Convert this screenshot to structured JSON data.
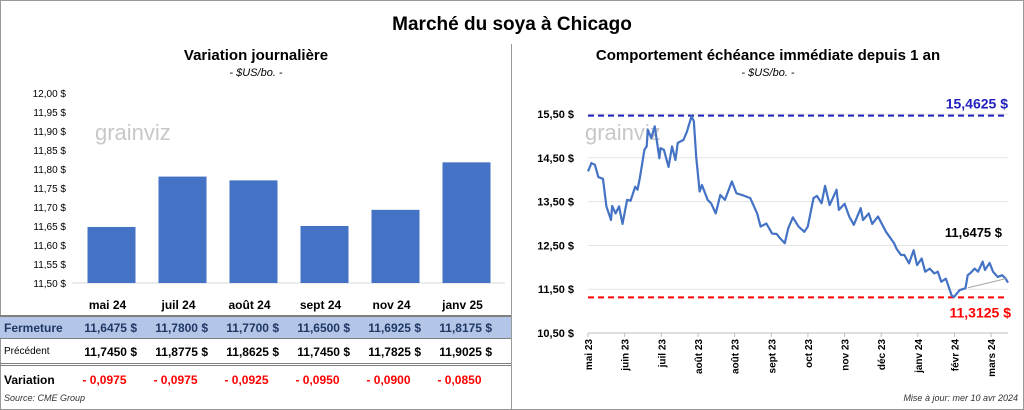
{
  "title": "Marché du soya à Chicago",
  "left": {
    "title": "Variation journalière",
    "subtitle": "- $US/bo. -",
    "watermark": "grainviz",
    "table": {
      "months": [
        "mai 24",
        "juil 24",
        "août 24",
        "sept 24",
        "nov 24",
        "janv 25"
      ],
      "rows": [
        {
          "label": "Fermeture",
          "values": [
            "11,6475  $",
            "11,7800  $",
            "11,7700  $",
            "11,6500  $",
            "11,6925  $",
            "11,8175  $"
          ]
        },
        {
          "label": "Précédent",
          "values": [
            "11,7450  $",
            "11,8775  $",
            "11,8625  $",
            "11,7450  $",
            "11,7825  $",
            "11,9025  $"
          ]
        },
        {
          "label": "Variation",
          "values": [
            "- 0,0975",
            "- 0,0975",
            "- 0,0925",
            "- 0,0950",
            "- 0,0900",
            "- 0,0850"
          ]
        }
      ]
    },
    "source": "Source: CME Group"
  },
  "right": {
    "title": "Comportement  échéance immédiate depuis 1 an",
    "subtitle": "- $US/bo. -",
    "watermark": "grainviz",
    "updated": "Mise à jour: mer 10 avr 2024"
  },
  "colors": {
    "bar": "#4472c4",
    "line": "#4472c4",
    "max": "#1f1fbf",
    "min": "#ff0000",
    "fermeture_bg": "#b4c6e7",
    "fermeture_text": "#1f3864",
    "variation": "#ff0000"
  },
  "chart_data": [
    {
      "type": "bar",
      "categories": [
        "mai 24",
        "juil 24",
        "août 24",
        "sept 24",
        "nov 24",
        "janv 25"
      ],
      "values": [
        11.6475,
        11.78,
        11.77,
        11.65,
        11.6925,
        11.8175
      ],
      "ylim": [
        11.5,
        12.0
      ],
      "yticks": [
        "11,50 $",
        "11,55 $",
        "11,60 $",
        "11,65 $",
        "11,70 $",
        "11,75 $",
        "11,80 $",
        "11,85 $",
        "11,90 $",
        "11,95 $",
        "12,00 $"
      ],
      "grid": false
    },
    {
      "type": "line",
      "ylim": [
        10.5,
        15.5
      ],
      "yticks": [
        "10,50 $",
        "11,50 $",
        "12,50 $",
        "13,50 $",
        "14,50 $",
        "15,50 $"
      ],
      "xticks": [
        "mai 23",
        "juin 23",
        "juil 23",
        "août 23",
        "août 23",
        "sept 23",
        "oct 23",
        "nov 23",
        "déc 23",
        "janv 24",
        "févr 24",
        "mars 24"
      ],
      "xrange": [
        "2023-04-11",
        "2024-04-10"
      ],
      "grid": true,
      "max": {
        "value": 15.4625,
        "label": "15,4625 $"
      },
      "min": {
        "value": 11.3125,
        "label": "11,3125 $"
      },
      "last": {
        "value": 11.6475,
        "label": "11,6475 $"
      },
      "points": [
        [
          "2023-04-11",
          14.19
        ],
        [
          "2023-04-14",
          14.38
        ],
        [
          "2023-04-17",
          14.34
        ],
        [
          "2023-04-20",
          14.06
        ],
        [
          "2023-04-24",
          14.02
        ],
        [
          "2023-04-27",
          13.39
        ],
        [
          "2023-05-01",
          13.08
        ],
        [
          "2023-05-02",
          13.4
        ],
        [
          "2023-05-05",
          13.23
        ],
        [
          "2023-05-08",
          13.39
        ],
        [
          "2023-05-11",
          12.99
        ],
        [
          "2023-05-15",
          13.54
        ],
        [
          "2023-05-18",
          13.52
        ],
        [
          "2023-05-22",
          13.84
        ],
        [
          "2023-05-24",
          13.77
        ],
        [
          "2023-05-26",
          14.03
        ],
        [
          "2023-05-30",
          14.68
        ],
        [
          "2023-06-01",
          14.76
        ],
        [
          "2023-06-02",
          15.14
        ],
        [
          "2023-06-05",
          14.95
        ],
        [
          "2023-06-08",
          15.22
        ],
        [
          "2023-06-12",
          14.49
        ],
        [
          "2023-06-13",
          14.72
        ],
        [
          "2023-06-16",
          14.68
        ],
        [
          "2023-06-20",
          14.29
        ],
        [
          "2023-06-23",
          14.76
        ],
        [
          "2023-06-26",
          14.45
        ],
        [
          "2023-06-28",
          14.84
        ],
        [
          "2023-07-03",
          14.91
        ],
        [
          "2023-07-06",
          15.1
        ],
        [
          "2023-07-10",
          15.45
        ],
        [
          "2023-07-12",
          15.33
        ],
        [
          "2023-07-14",
          14.53
        ],
        [
          "2023-07-17",
          13.73
        ],
        [
          "2023-07-19",
          13.88
        ],
        [
          "2023-07-24",
          13.54
        ],
        [
          "2023-07-27",
          13.46
        ],
        [
          "2023-07-31",
          13.23
        ],
        [
          "2023-08-04",
          13.65
        ],
        [
          "2023-08-08",
          13.54
        ],
        [
          "2023-08-14",
          13.96
        ],
        [
          "2023-08-18",
          13.69
        ],
        [
          "2023-08-23",
          13.65
        ],
        [
          "2023-08-30",
          13.58
        ],
        [
          "2023-09-05",
          13.23
        ],
        [
          "2023-09-08",
          12.93
        ],
        [
          "2023-09-13",
          13.0
        ],
        [
          "2023-09-18",
          12.77
        ],
        [
          "2023-09-22",
          12.76
        ],
        [
          "2023-09-25",
          12.66
        ],
        [
          "2023-09-29",
          12.55
        ],
        [
          "2023-10-02",
          12.89
        ],
        [
          "2023-10-06",
          13.14
        ],
        [
          "2023-10-11",
          12.93
        ],
        [
          "2023-10-16",
          12.81
        ],
        [
          "2023-10-19",
          12.93
        ],
        [
          "2023-10-24",
          13.58
        ],
        [
          "2023-10-27",
          13.63
        ],
        [
          "2023-10-31",
          13.46
        ],
        [
          "2023-11-03",
          13.86
        ],
        [
          "2023-11-07",
          13.42
        ],
        [
          "2023-11-13",
          13.77
        ],
        [
          "2023-11-15",
          13.31
        ],
        [
          "2023-11-20",
          13.45
        ],
        [
          "2023-11-24",
          13.16
        ],
        [
          "2023-11-28",
          12.97
        ],
        [
          "2023-12-04",
          13.35
        ],
        [
          "2023-12-06",
          13.08
        ],
        [
          "2023-12-11",
          13.23
        ],
        [
          "2023-12-14",
          12.99
        ],
        [
          "2023-12-19",
          13.16
        ],
        [
          "2023-12-26",
          12.81
        ],
        [
          "2024-01-02",
          12.55
        ],
        [
          "2024-01-04",
          12.43
        ],
        [
          "2024-01-08",
          12.28
        ],
        [
          "2024-01-11",
          12.28
        ],
        [
          "2024-01-15",
          12.09
        ],
        [
          "2024-01-19",
          12.39
        ],
        [
          "2024-01-22",
          12.05
        ],
        [
          "2024-01-26",
          12.2
        ],
        [
          "2024-01-29",
          11.9
        ],
        [
          "2024-02-02",
          11.97
        ],
        [
          "2024-02-06",
          11.86
        ],
        [
          "2024-02-09",
          11.9
        ],
        [
          "2024-02-12",
          11.67
        ],
        [
          "2024-02-16",
          11.74
        ],
        [
          "2024-02-21",
          11.36
        ],
        [
          "2024-02-23",
          11.32
        ],
        [
          "2024-02-28",
          11.48
        ],
        [
          "2024-03-04",
          11.52
        ],
        [
          "2024-03-06",
          11.82
        ],
        [
          "2024-03-08",
          11.86
        ],
        [
          "2024-03-12",
          11.97
        ],
        [
          "2024-03-15",
          11.9
        ],
        [
          "2024-03-19",
          12.13
        ],
        [
          "2024-03-21",
          11.94
        ],
        [
          "2024-03-25",
          12.1
        ],
        [
          "2024-03-28",
          11.9
        ],
        [
          "2024-04-01",
          11.78
        ],
        [
          "2024-04-05",
          11.82
        ],
        [
          "2024-04-08",
          11.74
        ],
        [
          "2024-04-10",
          11.65
        ]
      ]
    }
  ]
}
